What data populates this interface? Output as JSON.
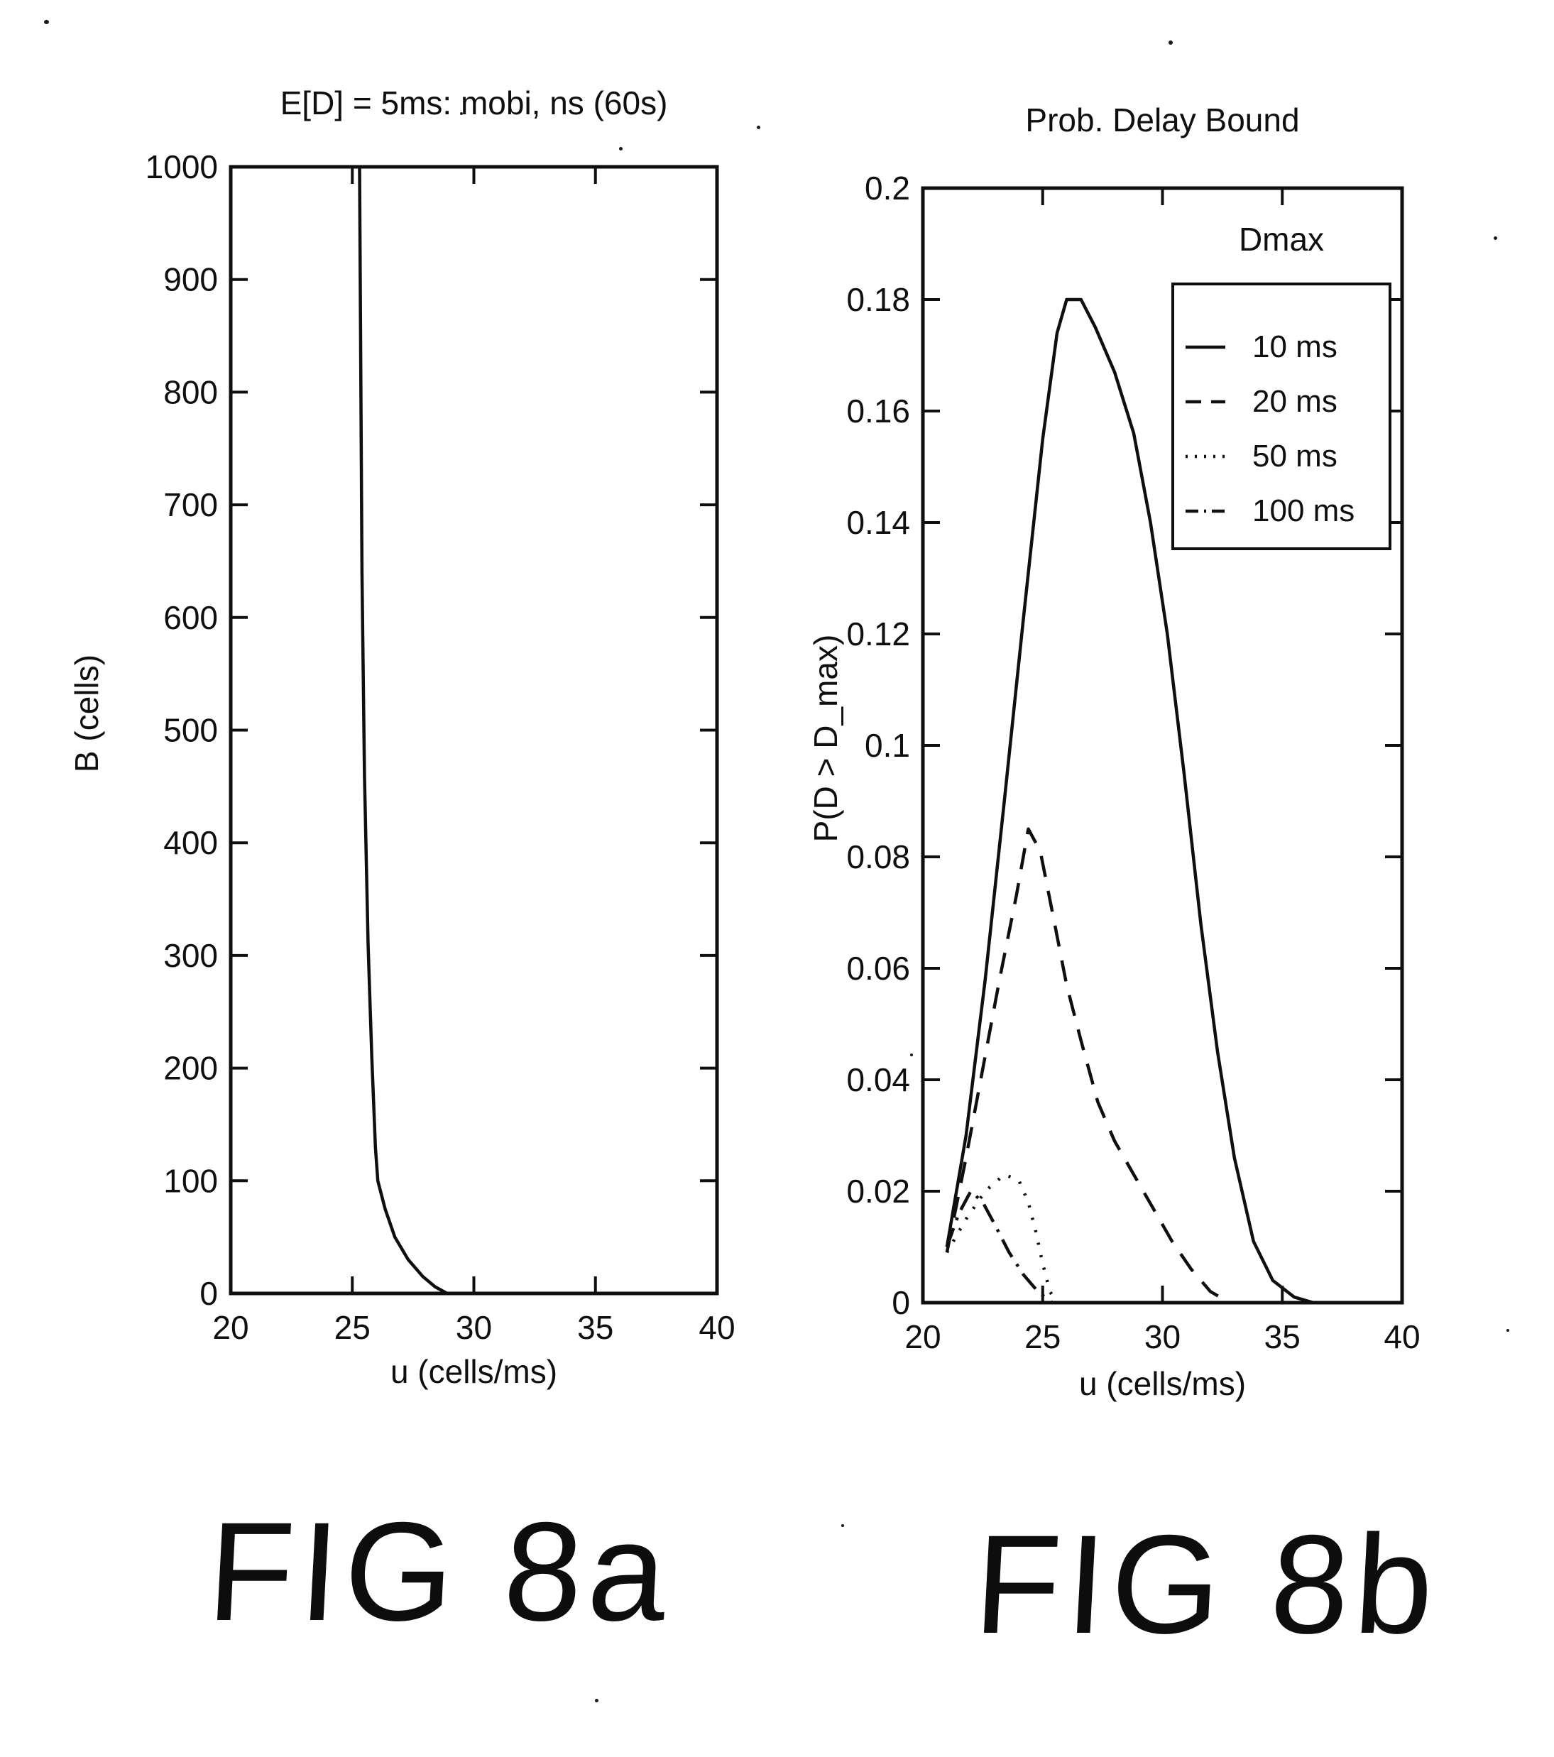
{
  "page": {
    "background": "#ffffff",
    "ink": "#0f0f0f"
  },
  "figure_labels": {
    "fig_a": "FIG 8a",
    "fig_b": "FIG 8b"
  },
  "chart_data": [
    {
      "type": "line",
      "name": "fig-8a",
      "title": "E[D] = 5ms: mobi, ns (60s)",
      "xlabel": "u (cells/ms)",
      "ylabel": "B (cells)",
      "xlim": [
        20,
        40
      ],
      "ylim": [
        0,
        1000
      ],
      "xticks": [
        20,
        25,
        30,
        35,
        40
      ],
      "yticks": [
        0,
        100,
        200,
        300,
        400,
        500,
        600,
        700,
        800,
        900,
        1000
      ],
      "grid": false,
      "legend_position": "none",
      "series": [
        {
          "name": "B",
          "style": "solid",
          "points": [
            [
              25.3,
              1000
            ],
            [
              25.4,
              640
            ],
            [
              25.5,
              460
            ],
            [
              25.65,
              310
            ],
            [
              25.8,
              210
            ],
            [
              25.95,
              130
            ],
            [
              26.05,
              100
            ],
            [
              26.35,
              75
            ],
            [
              26.75,
              50
            ],
            [
              27.3,
              30
            ],
            [
              27.9,
              15
            ],
            [
              28.4,
              6
            ],
            [
              28.9,
              0
            ]
          ]
        }
      ]
    },
    {
      "type": "line",
      "name": "fig-8b",
      "title": "Prob. Delay Bound",
      "xlabel": "u (cells/ms)",
      "ylabel": "P(D > D_max)",
      "xlim": [
        20,
        40
      ],
      "ylim": [
        0,
        0.2
      ],
      "xticks": [
        20,
        25,
        30,
        35,
        40
      ],
      "yticks": [
        0,
        0.02,
        0.04,
        0.06,
        0.08,
        0.1,
        0.12,
        0.14,
        0.16,
        0.18,
        0.2
      ],
      "grid": false,
      "legend_title": "Dmax",
      "legend_position": "upper right",
      "series": [
        {
          "name": "10 ms",
          "style": "solid",
          "points": [
            [
              21,
              0.01
            ],
            [
              21.8,
              0.03
            ],
            [
              22.6,
              0.058
            ],
            [
              23.4,
              0.09
            ],
            [
              24.2,
              0.123
            ],
            [
              25,
              0.155
            ],
            [
              25.6,
              0.174
            ],
            [
              26,
              0.18
            ],
            [
              26.6,
              0.18
            ],
            [
              27.2,
              0.175
            ],
            [
              28,
              0.167
            ],
            [
              28.8,
              0.156
            ],
            [
              29.5,
              0.14
            ],
            [
              30.2,
              0.12
            ],
            [
              30.9,
              0.095
            ],
            [
              31.6,
              0.068
            ],
            [
              32.3,
              0.045
            ],
            [
              33,
              0.026
            ],
            [
              33.8,
              0.011
            ],
            [
              34.6,
              0.004
            ],
            [
              35.5,
              0.001
            ],
            [
              36.3,
              0
            ],
            [
              39.7,
              0
            ]
          ]
        },
        {
          "name": "20 ms",
          "style": "dashed",
          "points": [
            [
              21,
              0.009
            ],
            [
              21.8,
              0.026
            ],
            [
              22.5,
              0.042
            ],
            [
              23.2,
              0.058
            ],
            [
              23.9,
              0.073
            ],
            [
              24.4,
              0.085
            ],
            [
              24.9,
              0.081
            ],
            [
              25.5,
              0.068
            ],
            [
              26,
              0.057
            ],
            [
              26.6,
              0.047
            ],
            [
              27.3,
              0.036
            ],
            [
              28,
              0.029
            ],
            [
              28.8,
              0.023
            ],
            [
              29.6,
              0.017
            ],
            [
              30.4,
              0.011
            ],
            [
              31.2,
              0.006
            ],
            [
              32,
              0.002
            ],
            [
              32.8,
              0
            ]
          ]
        },
        {
          "name": "50 ms",
          "style": "dotted",
          "points": [
            [
              21,
              0.009
            ],
            [
              21.8,
              0.015
            ],
            [
              22.6,
              0.02
            ],
            [
              23.4,
              0.023
            ],
            [
              24,
              0.022
            ],
            [
              24.4,
              0.018
            ],
            [
              24.7,
              0.013
            ],
            [
              25,
              0.007
            ],
            [
              25.3,
              0.002
            ],
            [
              25.6,
              0
            ]
          ]
        },
        {
          "name": "100 ms",
          "style": "dashdot",
          "points": [
            [
              21,
              0.01
            ],
            [
              21.5,
              0.016
            ],
            [
              22,
              0.02
            ],
            [
              22.5,
              0.018
            ],
            [
              23,
              0.014
            ],
            [
              23.6,
              0.009
            ],
            [
              24.2,
              0.005
            ],
            [
              24.8,
              0.002
            ],
            [
              25.4,
              0
            ]
          ]
        }
      ]
    }
  ]
}
